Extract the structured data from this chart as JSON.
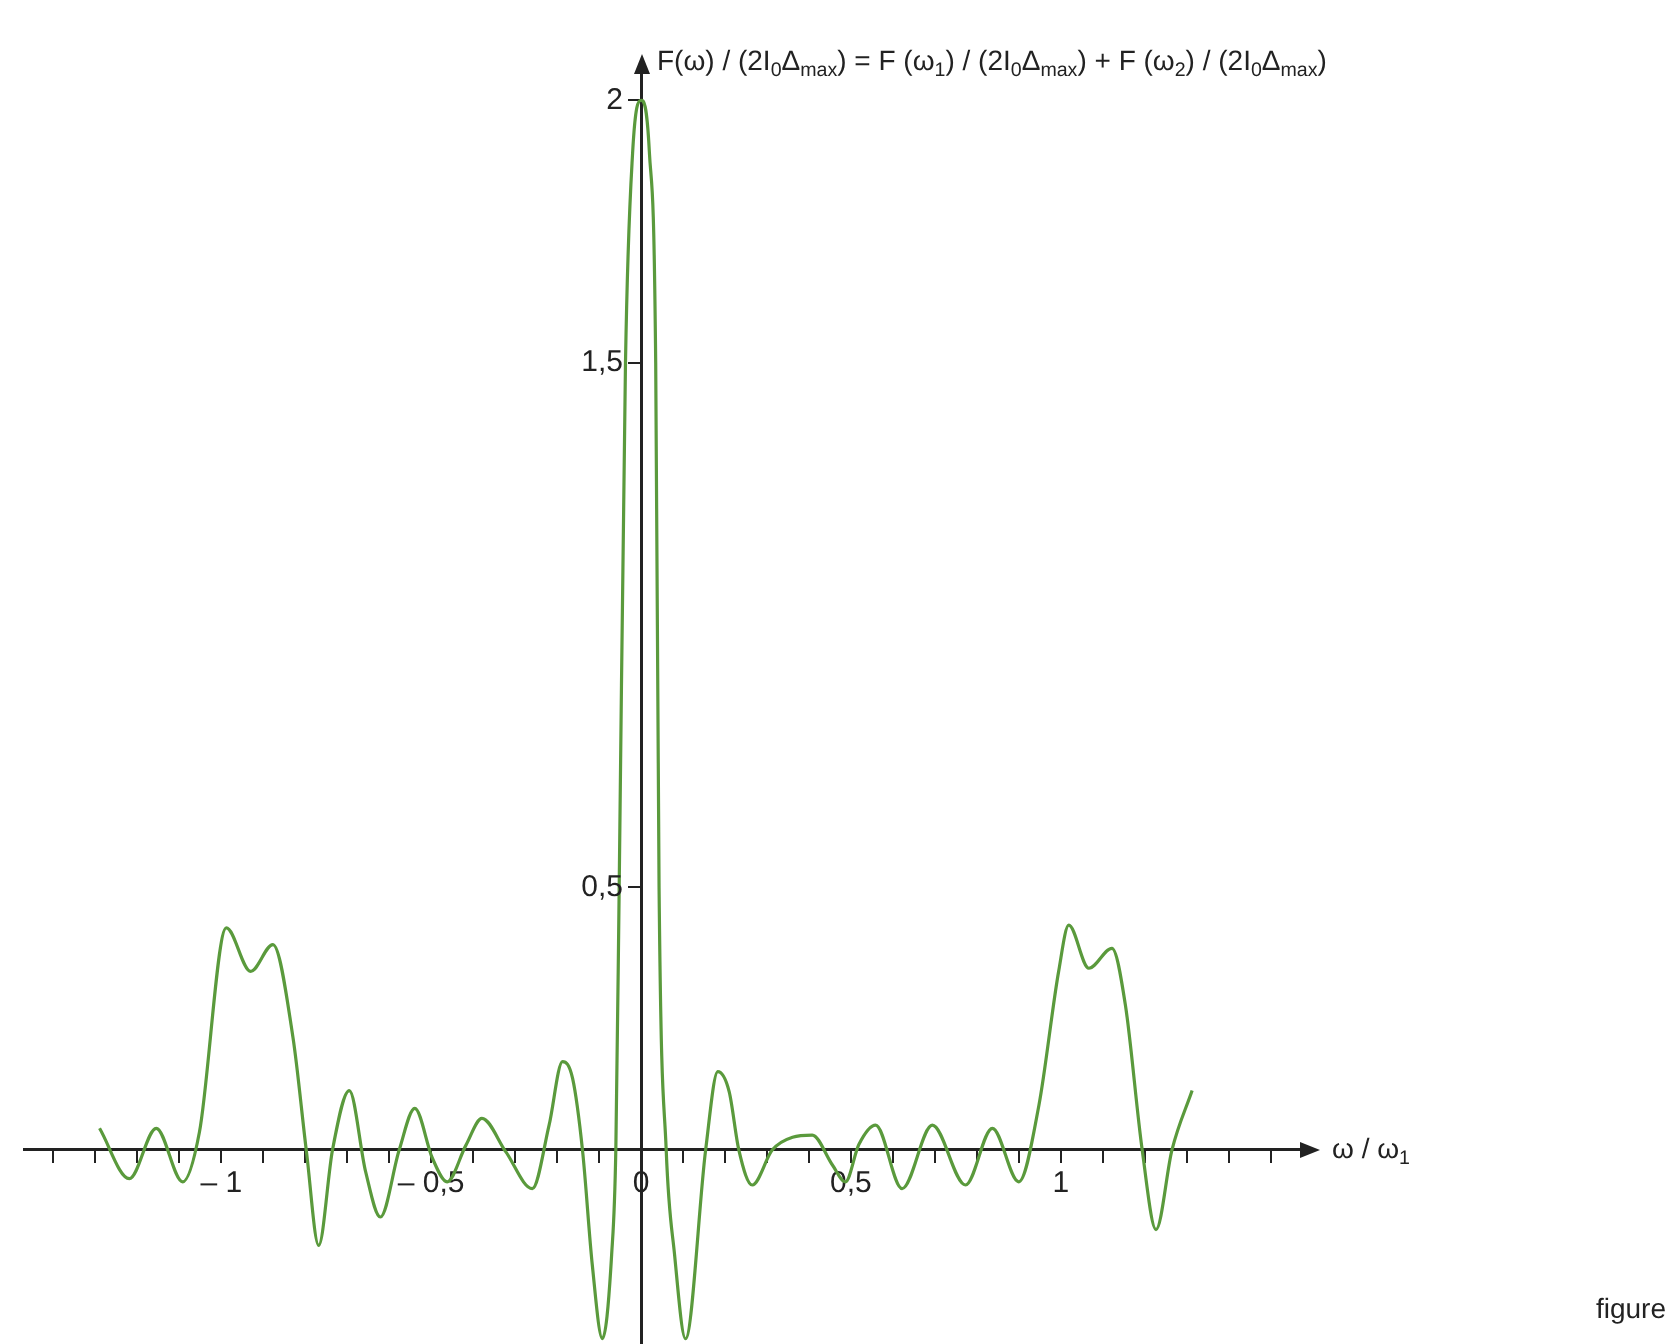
{
  "chart_data": {
    "type": "line",
    "ylabel": "F(ω) / (2I$_{0}$Δ$_{max}$) = F (ω$_{1}$) / (2I$_{0}$Δ$_{max}$) + F (ω$_{2}$) / (2I$_{0}$Δ$_{max}$)",
    "xlabel": "ω / ω$_{1}$",
    "annotations": [
      "figure"
    ],
    "x": [
      -1.29,
      -1.219,
      -1.155,
      -1.092,
      -1.052,
      -0.988,
      -0.93,
      -0.877,
      -0.829,
      -0.797,
      -0.768,
      -0.735,
      -0.695,
      -0.656,
      -0.621,
      -0.576,
      -0.539,
      -0.497,
      -0.462,
      -0.417,
      -0.379,
      -0.322,
      -0.259,
      -0.219,
      -0.187,
      -0.163,
      -0.139,
      -0.116,
      -0.092,
      -0.07,
      -0.06,
      -0.052,
      -0.037,
      -0.02,
      0,
      0.02,
      0.035,
      0.043,
      0.06,
      0.08,
      0.106,
      0.154,
      0.183,
      0.21,
      0.233,
      0.265,
      0.313,
      0.361,
      0.408,
      0.456,
      0.487,
      0.519,
      0.559,
      0.622,
      0.694,
      0.773,
      0.837,
      0.9,
      0.948,
      0.995,
      1.019,
      1.067,
      1.122,
      1.154,
      1.194,
      1.227,
      1.265,
      1.313
    ],
    "series": [
      {
        "color": "#5a9a3c",
        "values": [
          0.041,
          -0.055,
          0.041,
          -0.061,
          0.034,
          0.423,
          0.34,
          0.391,
          0.213,
          -0.004,
          -0.182,
          0,
          0.113,
          -0.042,
          -0.128,
          0,
          0.079,
          -0.016,
          -0.061,
          0.009,
          0.06,
          -0.004,
          -0.074,
          0.047,
          0.168,
          0.136,
          -0.004,
          -0.22,
          -0.36,
          -0.2,
          0,
          0.5,
          1.5,
          1.9,
          2,
          1.9,
          1.5,
          0.5,
          0,
          -0.2,
          -0.36,
          0,
          0.149,
          0.111,
          0,
          -0.067,
          0,
          0.024,
          0.028,
          -0.029,
          -0.061,
          0.01,
          0.047,
          -0.074,
          0.047,
          -0.067,
          0.041,
          -0.061,
          0.085,
          0.34,
          0.428,
          0.346,
          0.384,
          0.276,
          0,
          -0.152,
          0,
          0.113
        ]
      }
    ],
    "xlim": [
      -1.47,
      1.57
    ],
    "ylim": [
      -0.37,
      2.05
    ],
    "xticks": [
      {
        "value": -1.4,
        "label": null
      },
      {
        "value": -1.3,
        "label": null
      },
      {
        "value": -1.2,
        "label": null
      },
      {
        "value": -1.1,
        "label": null
      },
      {
        "value": -1,
        "label": "– 1"
      },
      {
        "value": -0.9,
        "label": null
      },
      {
        "value": -0.8,
        "label": null
      },
      {
        "value": -0.7,
        "label": null
      },
      {
        "value": -0.6,
        "label": null
      },
      {
        "value": -0.5,
        "label": "– 0,5"
      },
      {
        "value": -0.4,
        "label": null
      },
      {
        "value": -0.3,
        "label": null
      },
      {
        "value": -0.2,
        "label": null
      },
      {
        "value": -0.1,
        "label": null
      },
      {
        "value": 0,
        "label": "0"
      },
      {
        "value": 0.1,
        "label": null
      },
      {
        "value": 0.2,
        "label": null
      },
      {
        "value": 0.3,
        "label": null
      },
      {
        "value": 0.4,
        "label": null
      },
      {
        "value": 0.5,
        "label": "0,5"
      },
      {
        "value": 0.6,
        "label": null
      },
      {
        "value": 0.7,
        "label": null
      },
      {
        "value": 0.8,
        "label": null
      },
      {
        "value": 0.9,
        "label": null
      },
      {
        "value": 1,
        "label": "1"
      },
      {
        "value": 1.1,
        "label": null
      },
      {
        "value": 1.2,
        "label": null
      },
      {
        "value": 1.3,
        "label": null
      },
      {
        "value": 1.4,
        "label": null
      },
      {
        "value": 1.5,
        "label": null
      }
    ],
    "yticks": [
      {
        "value": 0.5,
        "label": "0,5"
      },
      {
        "value": 1.5,
        "label": "1,5"
      },
      2
    ],
    "grid": false,
    "legend": false,
    "marker": "none",
    "line_style": "solid"
  }
}
